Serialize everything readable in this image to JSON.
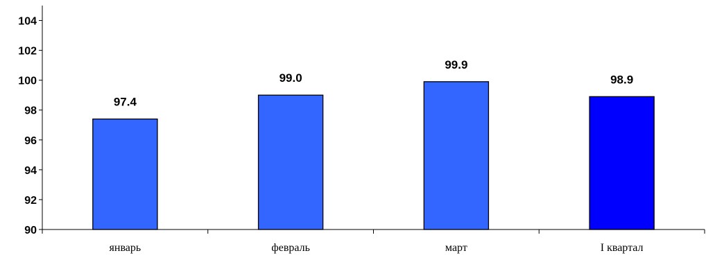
{
  "chart_data": {
    "type": "bar",
    "title": "",
    "xlabel": "",
    "ylabel": "",
    "categories": [
      "январь",
      "февраль",
      "март",
      "I квартал"
    ],
    "values": [
      97.4,
      99.0,
      99.9,
      98.9
    ],
    "data_labels": [
      "97.4",
      "99.0",
      "99.9",
      "98.9"
    ],
    "ylim": [
      90,
      105
    ],
    "yticks": [
      90,
      92,
      94,
      96,
      98,
      100,
      102,
      104
    ],
    "grid": false,
    "legend": "none",
    "colors": [
      "#3366FF",
      "#3366FF",
      "#3366FF",
      "#0000FF"
    ],
    "edge_color": "#000000"
  }
}
